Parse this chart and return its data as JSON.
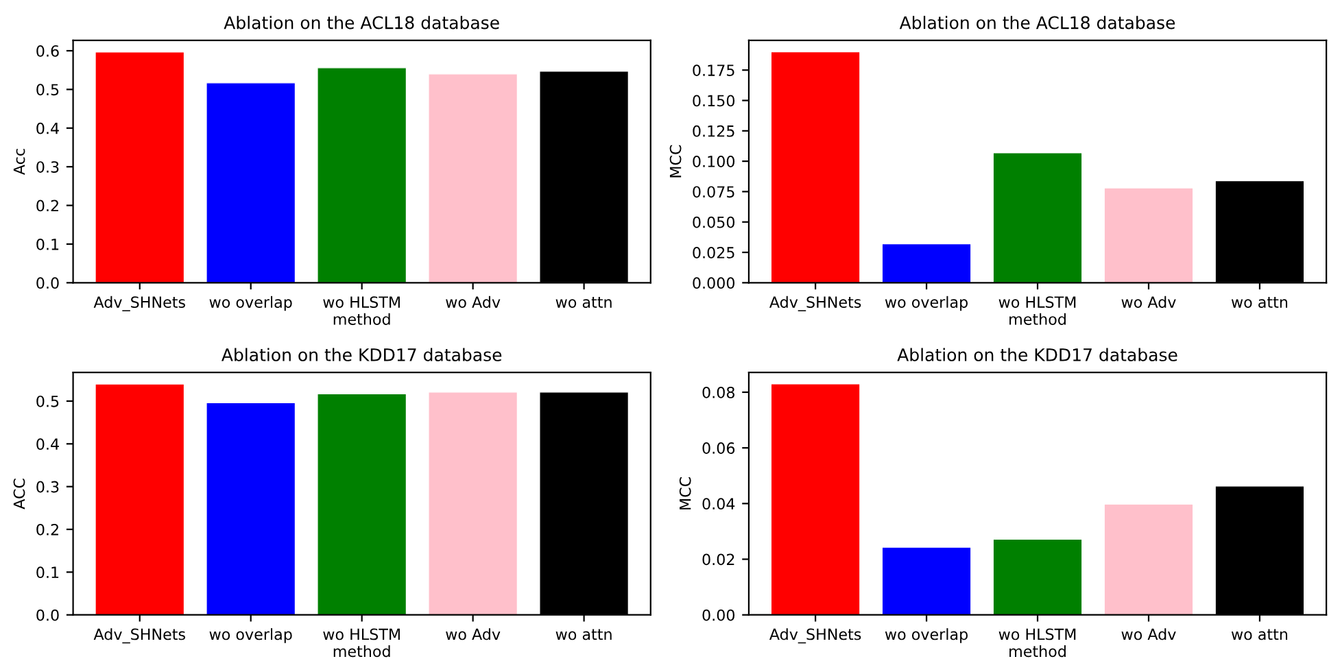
{
  "chart_data": [
    {
      "type": "bar",
      "title": "Ablation on the ACL18 database",
      "xlabel": "method",
      "ylabel": "Acc",
      "categories": [
        "Adv_SHNets",
        "wo overlap",
        "wo HLSTM",
        "wo Adv",
        "wo attn"
      ],
      "values": [
        0.597,
        0.517,
        0.556,
        0.54,
        0.547
      ],
      "colors": [
        "#ff0000",
        "#0000ff",
        "#008000",
        "#ffc0cb",
        "#000000"
      ],
      "ylim": [
        0,
        0.627
      ],
      "yticks": [
        {
          "value": 0,
          "label": "0.0"
        },
        0.1,
        0.2,
        0.3,
        0.4,
        0.5,
        0.6
      ],
      "grid": false
    },
    {
      "type": "bar",
      "title": "Ablation on the ACL18 database",
      "xlabel": "method",
      "ylabel": "MCC",
      "categories": [
        "Adv_SHNets",
        "wo overlap",
        "wo HLSTM",
        "wo Adv",
        "wo attn"
      ],
      "values": [
        0.19,
        0.032,
        0.107,
        0.078,
        0.084
      ],
      "colors": [
        "#ff0000",
        "#0000ff",
        "#008000",
        "#ffc0cb",
        "#000000"
      ],
      "ylim": [
        0,
        0.1995
      ],
      "yticks": [
        {
          "value": 0,
          "label": "0.000"
        },
        0.025,
        {
          "value": 0.05,
          "label": "0.050"
        },
        0.075,
        {
          "value": 0.1,
          "label": "0.100"
        },
        0.125,
        {
          "value": 0.15,
          "label": "0.150"
        },
        0.175
      ],
      "grid": false
    },
    {
      "type": "bar",
      "title": "Ablation on the KDD17 database",
      "xlabel": "method",
      "ylabel": "ACC",
      "categories": [
        "Adv_SHNets",
        "wo overlap",
        "wo HLSTM",
        "wo Adv",
        "wo attn"
      ],
      "values": [
        0.54,
        0.496,
        0.517,
        0.521,
        0.521
      ],
      "colors": [
        "#ff0000",
        "#0000ff",
        "#008000",
        "#ffc0cb",
        "#000000"
      ],
      "ylim": [
        0,
        0.567
      ],
      "yticks": [
        {
          "value": 0,
          "label": "0.0"
        },
        0.1,
        0.2,
        0.3,
        0.4,
        0.5
      ],
      "grid": false
    },
    {
      "type": "bar",
      "title": "Ablation on the KDD17 database",
      "xlabel": "method",
      "ylabel": "MCC",
      "categories": [
        "Adv_SHNets",
        "wo overlap",
        "wo HLSTM",
        "wo Adv",
        "wo attn"
      ],
      "values": [
        0.083,
        0.0243,
        0.0272,
        0.0398,
        0.0463
      ],
      "colors": [
        "#ff0000",
        "#0000ff",
        "#008000",
        "#ffc0cb",
        "#000000"
      ],
      "ylim": [
        0,
        0.0871
      ],
      "yticks": [
        {
          "value": 0,
          "label": "0.00"
        },
        0.02,
        0.04,
        0.06,
        0.08
      ],
      "grid": false
    }
  ]
}
